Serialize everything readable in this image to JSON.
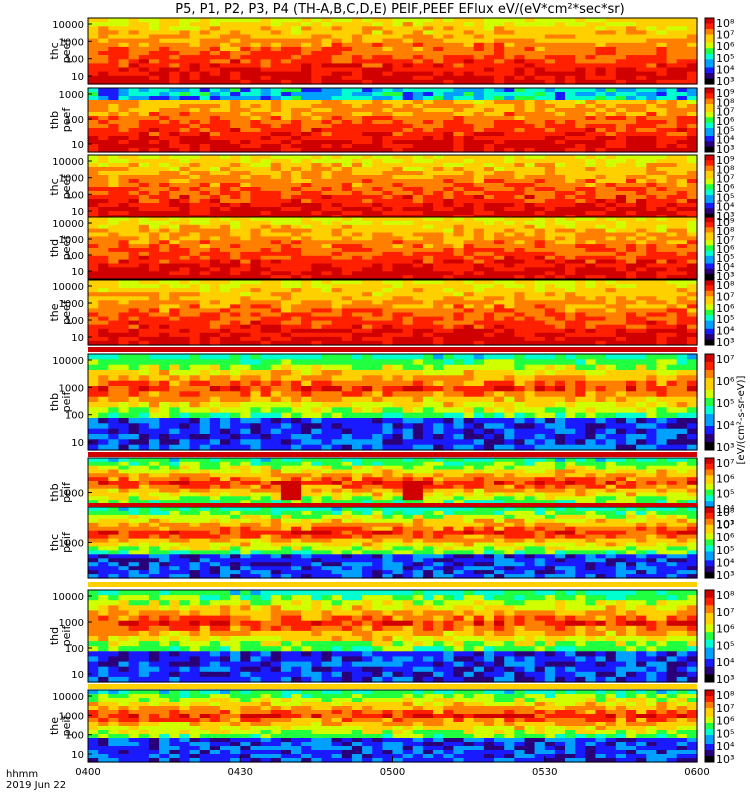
{
  "chart_data": {
    "type": "heatmap",
    "title": "P5, P1, P2, P3, P4 (TH-A,B,C,D,E) PEIF,PEEF EFlux eV/(eV*cm²*sec*sr)",
    "x_label_line1": "hhmm",
    "x_label_line2": "2019 Jun 22",
    "x_range": [
      "0400",
      "0600"
    ],
    "x_ticks": [
      "0400",
      "0430",
      "0500",
      "0530",
      "0600"
    ],
    "colorbar_label": "[eV/(cm²-s-sr-eV)]",
    "panels": [
      {
        "label": [
          "thc",
          "peef"
        ],
        "yticks": [
          "10000",
          "1000",
          "100",
          "10"
        ],
        "cb_ticks": [
          "10⁸",
          "10⁷",
          "10⁶",
          "10⁵",
          "10⁴",
          "10³"
        ],
        "type": "electron",
        "heatmap": true
      },
      {
        "label": [
          "thb",
          "peef"
        ],
        "yticks": [
          "1000",
          "100",
          "10"
        ],
        "cb_ticks": [
          "10⁹",
          "10⁸",
          "10⁷",
          "10⁶",
          "10⁵",
          "10⁴",
          "10³"
        ],
        "type": "electron",
        "heatmap": true
      },
      {
        "label": [
          "thc",
          "peef"
        ],
        "yticks": [
          "10000",
          "1000",
          "100",
          "10"
        ],
        "cb_ticks": [
          "10⁹",
          "10⁸",
          "10⁷",
          "10⁶",
          "10⁵",
          "10⁴",
          "10³"
        ],
        "type": "electron",
        "heatmap": true
      },
      {
        "label": [
          "thd",
          "peef"
        ],
        "yticks": [
          "10000",
          "1000",
          "100",
          "10"
        ],
        "cb_ticks": [
          "10⁹",
          "10⁸",
          "10⁷",
          "10⁶",
          "10⁵",
          "10⁴",
          "10³"
        ],
        "type": "electron",
        "heatmap": true
      },
      {
        "label": [
          "the",
          "peef"
        ],
        "yticks": [
          "10000",
          "1000",
          "100",
          "10"
        ],
        "cb_ticks": [
          "10⁸",
          "10⁷",
          "10⁶",
          "10⁵",
          "10⁴",
          "10³"
        ],
        "type": "electron",
        "heatmap": true
      },
      {
        "label": [
          "thb",
          "peif"
        ],
        "yticks": [
          "10000",
          "1000",
          "100",
          "10"
        ],
        "cb_ticks": [
          "10⁷",
          "10⁶",
          "10⁵",
          "10⁴",
          "10³"
        ],
        "type": "ion",
        "heatmap": true
      },
      {
        "label": [
          "thb",
          "peif"
        ],
        "yticks": [
          "1000"
        ],
        "cb_ticks": [
          "10⁷",
          "10⁶",
          "10⁵",
          "10⁴",
          "10³"
        ],
        "type": "ion",
        "heatmap": true
      },
      {
        "label": [
          "thc",
          "peif"
        ],
        "yticks": [
          "1000"
        ],
        "cb_ticks": [
          "10⁸",
          "10⁷",
          "10⁶",
          "10⁵",
          "10⁴",
          "10³"
        ],
        "type": "ion",
        "heatmap": true
      },
      {
        "label": [
          "thd",
          "peif"
        ],
        "yticks": [
          "10000",
          "1000",
          "100",
          "10"
        ],
        "cb_ticks": [
          "10⁸",
          "10⁷",
          "10⁶",
          "10⁵",
          "10⁴",
          "10³"
        ],
        "type": "ion",
        "heatmap": true
      },
      {
        "label": [
          "the",
          "peif"
        ],
        "yticks": [
          "10000",
          "1000",
          "100",
          "10"
        ],
        "cb_ticks": [
          "10⁸",
          "10⁷",
          "10⁶",
          "10⁵",
          "10⁴",
          "10³"
        ],
        "type": "ion",
        "heatmap": true
      }
    ],
    "colormap": [
      "#000000",
      "#2a007a",
      "#1a1aff",
      "#00a0ff",
      "#00ffd0",
      "#20ff40",
      "#d0ff00",
      "#ffd000",
      "#ff8000",
      "#ff2000",
      "#d00000"
    ]
  }
}
